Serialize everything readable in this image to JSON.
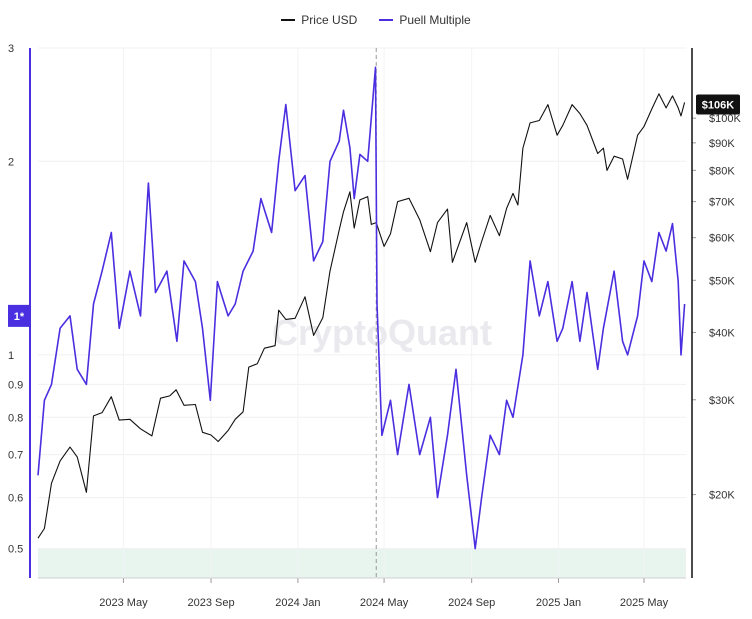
{
  "chart_data": {
    "type": "line",
    "watermark": "CryptoQuant",
    "legend_position": "top-center",
    "grid": true,
    "colors": {
      "price": "#111111",
      "puell": "#4a2fe0",
      "band": "#e8f4ee",
      "price_tag_bg": "#111111",
      "puell_tag_bg": "#4a2fe0"
    },
    "series": [
      {
        "name": "Price USD",
        "axis": "right",
        "color": "#111111",
        "points": [
          [
            "2023-01-01",
            16600
          ],
          [
            "2023-01-10",
            17300
          ],
          [
            "2023-01-20",
            21000
          ],
          [
            "2023-02-01",
            23100
          ],
          [
            "2023-02-15",
            24500
          ],
          [
            "2023-02-25",
            23500
          ],
          [
            "2023-03-10",
            20200
          ],
          [
            "2023-03-20",
            28000
          ],
          [
            "2023-04-01",
            28400
          ],
          [
            "2023-04-14",
            30400
          ],
          [
            "2023-04-25",
            27500
          ],
          [
            "2023-05-10",
            27600
          ],
          [
            "2023-05-25",
            26500
          ],
          [
            "2023-06-10",
            25700
          ],
          [
            "2023-06-22",
            30200
          ],
          [
            "2023-07-05",
            30500
          ],
          [
            "2023-07-14",
            31300
          ],
          [
            "2023-07-25",
            29300
          ],
          [
            "2023-08-10",
            29400
          ],
          [
            "2023-08-20",
            26100
          ],
          [
            "2023-09-01",
            25800
          ],
          [
            "2023-09-11",
            25100
          ],
          [
            "2023-09-25",
            26300
          ],
          [
            "2023-10-05",
            27600
          ],
          [
            "2023-10-16",
            28500
          ],
          [
            "2023-10-24",
            34500
          ],
          [
            "2023-11-05",
            35000
          ],
          [
            "2023-11-15",
            37400
          ],
          [
            "2023-11-30",
            37800
          ],
          [
            "2023-12-05",
            44000
          ],
          [
            "2023-12-15",
            42300
          ],
          [
            "2023-12-28",
            42500
          ],
          [
            "2024-01-11",
            46600
          ],
          [
            "2024-01-23",
            39500
          ],
          [
            "2024-02-05",
            42600
          ],
          [
            "2024-02-15",
            52000
          ],
          [
            "2024-02-28",
            62000
          ],
          [
            "2024-03-05",
            67000
          ],
          [
            "2024-03-14",
            73000
          ],
          [
            "2024-03-20",
            62500
          ],
          [
            "2024-03-28",
            70500
          ],
          [
            "2024-04-08",
            71500
          ],
          [
            "2024-04-13",
            63500
          ],
          [
            "2024-04-20",
            64000
          ],
          [
            "2024-05-01",
            57800
          ],
          [
            "2024-05-10",
            61000
          ],
          [
            "2024-05-20",
            70000
          ],
          [
            "2024-06-05",
            71000
          ],
          [
            "2024-06-20",
            64800
          ],
          [
            "2024-07-05",
            56500
          ],
          [
            "2024-07-15",
            64000
          ],
          [
            "2024-07-29",
            67800
          ],
          [
            "2024-08-05",
            54000
          ],
          [
            "2024-08-25",
            64000
          ],
          [
            "2024-09-06",
            54000
          ],
          [
            "2024-09-15",
            59000
          ],
          [
            "2024-09-27",
            66000
          ],
          [
            "2024-10-10",
            60500
          ],
          [
            "2024-10-20",
            68000
          ],
          [
            "2024-10-29",
            72500
          ],
          [
            "2024-11-05",
            69000
          ],
          [
            "2024-11-12",
            88000
          ],
          [
            "2024-11-22",
            98000
          ],
          [
            "2024-12-05",
            99000
          ],
          [
            "2024-12-17",
            106000
          ],
          [
            "2024-12-30",
            93000
          ],
          [
            "2025-01-07",
            97000
          ],
          [
            "2025-01-20",
            106000
          ],
          [
            "2025-01-31",
            102000
          ],
          [
            "2025-02-10",
            97000
          ],
          [
            "2025-02-25",
            86000
          ],
          [
            "2025-03-05",
            88000
          ],
          [
            "2025-03-10",
            80000
          ],
          [
            "2025-03-20",
            85000
          ],
          [
            "2025-04-01",
            84000
          ],
          [
            "2025-04-08",
            77000
          ],
          [
            "2025-04-22",
            93000
          ],
          [
            "2025-05-01",
            96500
          ],
          [
            "2025-05-12",
            104000
          ],
          [
            "2025-05-22",
            111000
          ],
          [
            "2025-06-01",
            104500
          ],
          [
            "2025-06-10",
            110000
          ],
          [
            "2025-06-18",
            104500
          ],
          [
            "2025-06-22",
            101000
          ],
          [
            "2025-06-27",
            107000
          ]
        ]
      },
      {
        "name": "Puell Multiple",
        "axis": "left",
        "color": "#4a2fe0",
        "points": [
          [
            "2023-01-01",
            0.65
          ],
          [
            "2023-01-10",
            0.85
          ],
          [
            "2023-01-20",
            0.9
          ],
          [
            "2023-02-01",
            1.1
          ],
          [
            "2023-02-15",
            1.15
          ],
          [
            "2023-02-25",
            0.95
          ],
          [
            "2023-03-10",
            0.9
          ],
          [
            "2023-03-20",
            1.2
          ],
          [
            "2023-04-01",
            1.35
          ],
          [
            "2023-04-14",
            1.55
          ],
          [
            "2023-04-25",
            1.1
          ],
          [
            "2023-05-10",
            1.35
          ],
          [
            "2023-05-25",
            1.15
          ],
          [
            "2023-06-05",
            1.85
          ],
          [
            "2023-06-15",
            1.25
          ],
          [
            "2023-07-01",
            1.35
          ],
          [
            "2023-07-15",
            1.05
          ],
          [
            "2023-07-25",
            1.4
          ],
          [
            "2023-08-10",
            1.3
          ],
          [
            "2023-08-20",
            1.1
          ],
          [
            "2023-08-31",
            0.85
          ],
          [
            "2023-09-10",
            1.3
          ],
          [
            "2023-09-25",
            1.15
          ],
          [
            "2023-10-05",
            1.2
          ],
          [
            "2023-10-16",
            1.35
          ],
          [
            "2023-10-30",
            1.45
          ],
          [
            "2023-11-10",
            1.75
          ],
          [
            "2023-11-25",
            1.55
          ],
          [
            "2023-12-05",
            2.0
          ],
          [
            "2023-12-15",
            2.45
          ],
          [
            "2023-12-28",
            1.8
          ],
          [
            "2024-01-11",
            1.9
          ],
          [
            "2024-01-23",
            1.4
          ],
          [
            "2024-02-05",
            1.5
          ],
          [
            "2024-02-15",
            2.0
          ],
          [
            "2024-02-28",
            2.15
          ],
          [
            "2024-03-05",
            2.4
          ],
          [
            "2024-03-14",
            2.1
          ],
          [
            "2024-03-20",
            1.75
          ],
          [
            "2024-03-28",
            2.05
          ],
          [
            "2024-04-08",
            2.0
          ],
          [
            "2024-04-19",
            2.8
          ],
          [
            "2024-04-21",
            1.2
          ],
          [
            "2024-04-28",
            0.75
          ],
          [
            "2024-05-10",
            0.85
          ],
          [
            "2024-05-20",
            0.7
          ],
          [
            "2024-06-05",
            0.9
          ],
          [
            "2024-06-20",
            0.7
          ],
          [
            "2024-07-05",
            0.8
          ],
          [
            "2024-07-15",
            0.6
          ],
          [
            "2024-07-29",
            0.75
          ],
          [
            "2024-08-10",
            0.95
          ],
          [
            "2024-08-25",
            0.65
          ],
          [
            "2024-09-06",
            0.5
          ],
          [
            "2024-09-15",
            0.6
          ],
          [
            "2024-09-27",
            0.75
          ],
          [
            "2024-10-10",
            0.7
          ],
          [
            "2024-10-20",
            0.85
          ],
          [
            "2024-10-29",
            0.8
          ],
          [
            "2024-11-12",
            1.0
          ],
          [
            "2024-11-22",
            1.4
          ],
          [
            "2024-12-05",
            1.15
          ],
          [
            "2024-12-17",
            1.3
          ],
          [
            "2024-12-30",
            1.05
          ],
          [
            "2025-01-07",
            1.1
          ],
          [
            "2025-01-20",
            1.3
          ],
          [
            "2025-01-31",
            1.05
          ],
          [
            "2025-02-10",
            1.25
          ],
          [
            "2025-02-25",
            0.95
          ],
          [
            "2025-03-05",
            1.1
          ],
          [
            "2025-03-20",
            1.35
          ],
          [
            "2025-04-01",
            1.05
          ],
          [
            "2025-04-08",
            1.0
          ],
          [
            "2025-04-22",
            1.15
          ],
          [
            "2025-05-01",
            1.4
          ],
          [
            "2025-05-12",
            1.3
          ],
          [
            "2025-05-22",
            1.55
          ],
          [
            "2025-06-01",
            1.45
          ],
          [
            "2025-06-10",
            1.6
          ],
          [
            "2025-06-18",
            1.3
          ],
          [
            "2025-06-22",
            1.0
          ],
          [
            "2025-06-27",
            1.2
          ]
        ]
      }
    ],
    "x_axis": {
      "range": [
        "2023-01-01",
        "2025-06-29"
      ],
      "ticks": [
        [
          "2023-05-01",
          "2023 May"
        ],
        [
          "2023-09-01",
          "2023 Sep"
        ],
        [
          "2024-01-01",
          "2024 Jan"
        ],
        [
          "2024-05-01",
          "2024 May"
        ],
        [
          "2024-09-01",
          "2024 Sep"
        ],
        [
          "2025-01-01",
          "2025 Jan"
        ],
        [
          "2025-05-01",
          "2025 May"
        ]
      ]
    },
    "y_left": {
      "scale": "log",
      "range": [
        0.45,
        3
      ],
      "ticks": [
        [
          3,
          "3"
        ],
        [
          2,
          "2"
        ],
        [
          1,
          "1"
        ],
        [
          0.9,
          "0.9"
        ],
        [
          0.8,
          "0.8"
        ],
        [
          0.7,
          "0.7"
        ],
        [
          0.6,
          "0.6"
        ],
        [
          0.5,
          "0.5"
        ]
      ],
      "current_marker": {
        "value": 1.15,
        "label": "1*"
      },
      "band": [
        0.45,
        0.5
      ]
    },
    "y_right": {
      "scale": "log",
      "range": [
        14000,
        135000
      ],
      "ticks": [
        [
          100000,
          "$100K"
        ],
        [
          90000,
          "$90K"
        ],
        [
          80000,
          "$80K"
        ],
        [
          70000,
          "$70K"
        ],
        [
          60000,
          "$60K"
        ],
        [
          50000,
          "$50K"
        ],
        [
          40000,
          "$40K"
        ],
        [
          30000,
          "$30K"
        ],
        [
          20000,
          "$20K"
        ]
      ],
      "current_marker": {
        "value": 106000,
        "label": "$106K"
      }
    },
    "vertical_marker": "2024-04-20"
  }
}
